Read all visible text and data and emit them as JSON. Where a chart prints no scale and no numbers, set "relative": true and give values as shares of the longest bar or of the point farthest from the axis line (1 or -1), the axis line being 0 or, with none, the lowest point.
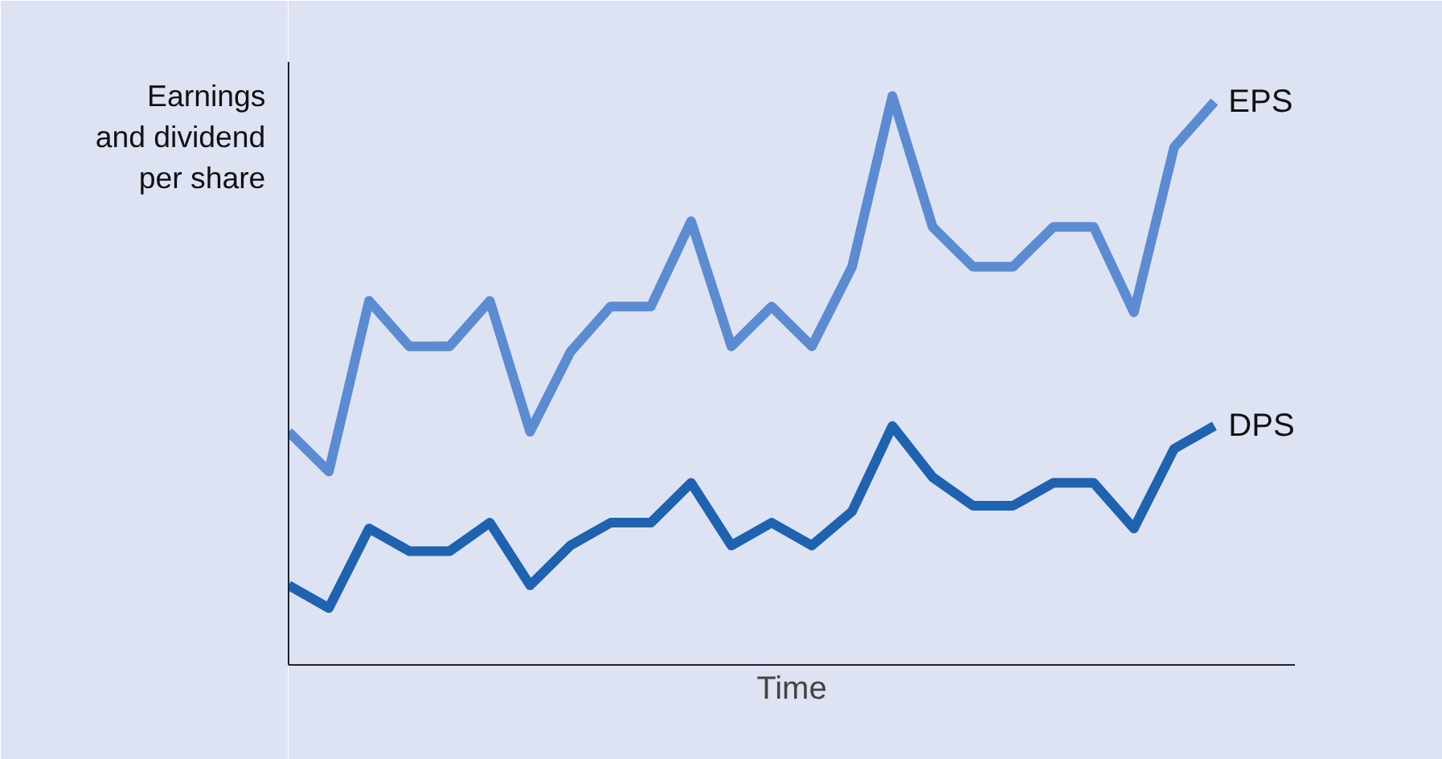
{
  "chart_data": {
    "type": "line",
    "relative": true,
    "xlabel": "Time",
    "ylabel": "Earnings\nand dividend\nper share",
    "categories": [
      null,
      null,
      null,
      null,
      null,
      null,
      null,
      null,
      null,
      null,
      null,
      null,
      null,
      null,
      null,
      null,
      null,
      null,
      null,
      null,
      null,
      null,
      null,
      null
    ],
    "series": [
      {
        "name": "EPS",
        "color": "#5b8bd0",
        "values": [
          0.41,
          0.34,
          0.64,
          0.56,
          0.56,
          0.64,
          0.41,
          0.55,
          0.63,
          0.63,
          0.78,
          0.56,
          0.63,
          0.56,
          0.7,
          1.0,
          0.77,
          0.7,
          0.7,
          0.77,
          0.77,
          0.62,
          0.91,
          0.99
        ]
      },
      {
        "name": "DPS",
        "color": "#1f63b0",
        "values": [
          0.14,
          0.1,
          0.24,
          0.2,
          0.2,
          0.25,
          0.14,
          0.21,
          0.25,
          0.25,
          0.32,
          0.21,
          0.25,
          0.21,
          0.27,
          0.42,
          0.33,
          0.28,
          0.28,
          0.32,
          0.32,
          0.24,
          0.38,
          0.42
        ]
      }
    ],
    "marker": "none",
    "line_style": "solid"
  }
}
